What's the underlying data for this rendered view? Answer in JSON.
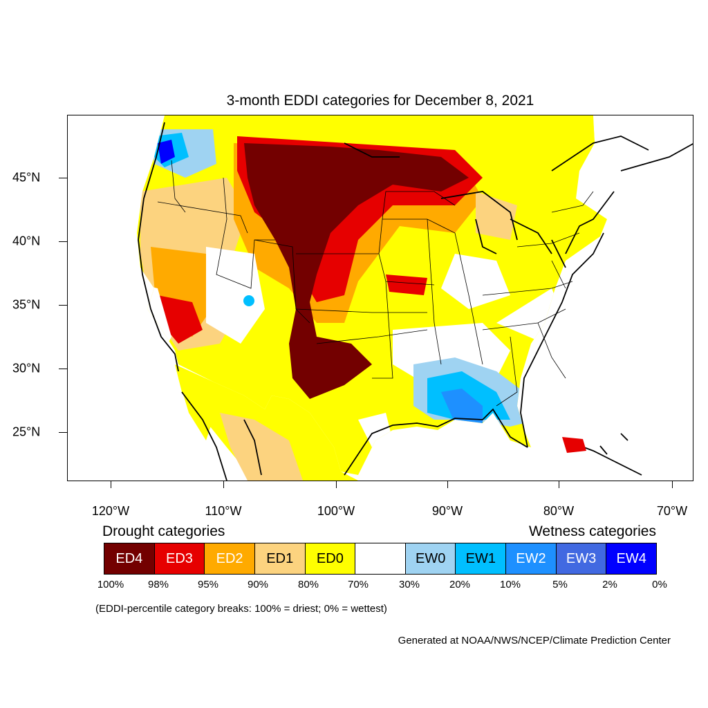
{
  "title": "3-month EDDI categories for December 8, 2021",
  "map": {
    "lat_labels": [
      "45°N",
      "40°N",
      "35°N",
      "30°N",
      "25°N"
    ],
    "lon_labels": [
      "120°W",
      "110°W",
      "100°W",
      "90°W",
      "80°W",
      "70°W"
    ]
  },
  "legend": {
    "drought_heading": "Drought categories",
    "wetness_heading": "Wetness categories",
    "categories": [
      {
        "label": "ED4",
        "color": "#730000",
        "text_color": "#ffffff"
      },
      {
        "label": "ED3",
        "color": "#e60000",
        "text_color": "#ffffff"
      },
      {
        "label": "ED2",
        "color": "#ffaa00",
        "text_color": "#ffffff"
      },
      {
        "label": "ED1",
        "color": "#fcd37f",
        "text_color": "#000000"
      },
      {
        "label": "ED0",
        "color": "#ffff00",
        "text_color": "#000000"
      },
      {
        "label": "",
        "color": "#ffffff",
        "text_color": "#000000"
      },
      {
        "label": "EW0",
        "color": "#9fd3f2",
        "text_color": "#000000"
      },
      {
        "label": "EW1",
        "color": "#00bfff",
        "text_color": "#000000"
      },
      {
        "label": "EW2",
        "color": "#1e90ff",
        "text_color": "#ffffff"
      },
      {
        "label": "EW3",
        "color": "#4169e1",
        "text_color": "#ffffff"
      },
      {
        "label": "EW4",
        "color": "#0000ff",
        "text_color": "#ffffff"
      }
    ],
    "percent_breaks": [
      "100%",
      "98%",
      "95%",
      "90%",
      "80%",
      "70%",
      "30%",
      "20%",
      "10%",
      "5%",
      "2%",
      "0%"
    ]
  },
  "note": "(EDDI-percentile category breaks: 100% = driest; 0% = wettest)",
  "credit": "Generated at NOAA/NWS/NCEP/Climate Prediction Center"
}
